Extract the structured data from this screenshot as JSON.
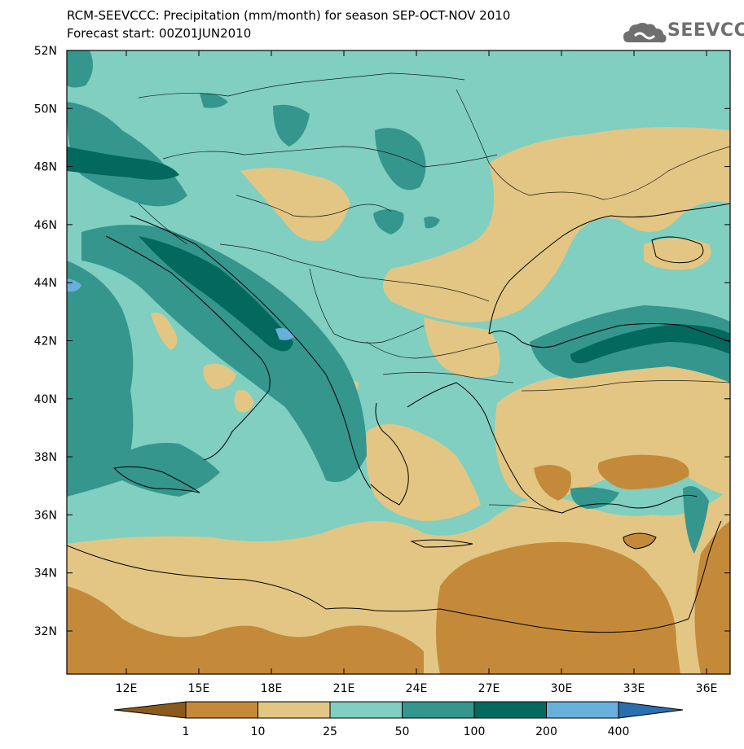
{
  "title": {
    "line1": "RCM-SEEVCCC: Precipitation (mm/month) for season SEP-OCT-NOV 2010",
    "line2": "Forecast start: 00Z01JUN2010"
  },
  "logo": {
    "text": "SEEVCCC"
  },
  "axes": {
    "lon_ticks": [
      "12E",
      "15E",
      "18E",
      "21E",
      "24E",
      "27E",
      "30E",
      "33E",
      "36E"
    ],
    "lat_ticks": [
      "52N",
      "50N",
      "48N",
      "46N",
      "44N",
      "42N",
      "40N",
      "38N",
      "36N",
      "34N",
      "32N"
    ]
  },
  "colorbar": {
    "labels": [
      "1",
      "10",
      "25",
      "50",
      "100",
      "200",
      "400"
    ],
    "colors": [
      "#8a5a1c",
      "#c48a3a",
      "#e3c684",
      "#80cfc1",
      "#35968e",
      "#03695f",
      "#68b0dc",
      "#2a6fb0"
    ]
  },
  "palette": {
    "dry_dark": "#c48a3a",
    "dry_light": "#e3c684",
    "wet_light": "#80cfc1",
    "wet_mid": "#35968e",
    "wet_dark": "#03695f",
    "wet_blue": "#68b0dc"
  }
}
